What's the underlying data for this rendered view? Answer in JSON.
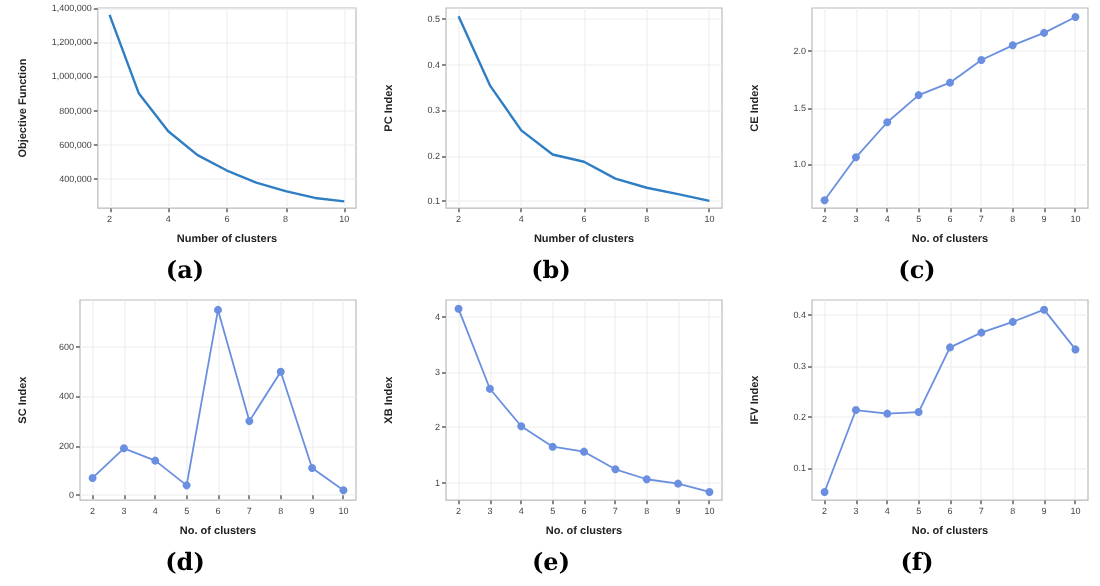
{
  "chart_data": [
    {
      "type": "line",
      "xlabel": "Number of clusters",
      "ylabel": "Objective Function",
      "annotations": [
        "(a)"
      ],
      "x": [
        2,
        3,
        4,
        5,
        6,
        7,
        8,
        9,
        10
      ],
      "series": [
        {
          "color": "#2f7ec4",
          "values": [
            1360000,
            900000,
            680000,
            540000,
            450000,
            380000,
            330000,
            290000,
            270000
          ]
        }
      ],
      "xlim": [
        1.6,
        10.4
      ],
      "xticks": [
        2,
        4,
        6,
        8,
        10
      ],
      "ylim": [
        230000,
        1400000
      ],
      "yticks": [
        {
          "value": 400000,
          "label": "400,000"
        },
        {
          "value": 600000,
          "label": "600,000"
        },
        {
          "value": 800000,
          "label": "800,000"
        },
        {
          "value": 1000000,
          "label": "1,000,000"
        },
        {
          "value": 1200000,
          "label": "1,200,000"
        },
        {
          "value": 1400000,
          "label": "1,400,000"
        }
      ],
      "grid": true,
      "marker": "none"
    },
    {
      "type": "line",
      "xlabel": "Number of clusters",
      "ylabel": "PC Index",
      "annotations": [
        "(b)"
      ],
      "x": [
        2,
        3,
        4,
        5,
        6,
        7,
        8,
        9,
        10
      ],
      "series": [
        {
          "color": "#2f7ec4",
          "values": [
            0.507,
            0.355,
            0.256,
            0.203,
            0.187,
            0.15,
            0.13,
            0.116,
            0.101
          ]
        }
      ],
      "xlim": [
        1.6,
        10.4
      ],
      "xticks": [
        2,
        4,
        6,
        8,
        10
      ],
      "ylim": [
        0.085,
        0.525
      ],
      "yticks": [
        0.1,
        0.2,
        0.3,
        0.4,
        0.5
      ],
      "grid": true,
      "marker": "none"
    },
    {
      "type": "line",
      "xlabel": "No. of clusters",
      "ylabel": "CE Index",
      "annotations": [
        "(c)"
      ],
      "x": [
        2,
        3,
        4,
        5,
        6,
        7,
        8,
        9,
        10
      ],
      "series": [
        {
          "color": "#6a8fe0",
          "values": [
            0.68,
            1.06,
            1.37,
            1.61,
            1.72,
            1.92,
            2.05,
            2.16,
            2.3
          ]
        }
      ],
      "xlim": [
        1.6,
        10.4
      ],
      "xticks": [
        2,
        3,
        4,
        5,
        6,
        7,
        8,
        9,
        10
      ],
      "ylim": [
        0.61,
        2.38
      ],
      "yticks": [
        {
          "value": 1,
          "label": "1.0"
        },
        1.5,
        {
          "value": 2,
          "label": "2.0"
        }
      ],
      "grid": true,
      "marker": "circle"
    },
    {
      "type": "line",
      "xlabel": "No. of clusters",
      "ylabel": "SC Index",
      "annotations": [
        "(d)"
      ],
      "x": [
        2,
        3,
        4,
        5,
        6,
        7,
        8,
        9,
        10
      ],
      "series": [
        {
          "color": "#6a8fe0",
          "values": [
            70,
            190,
            140,
            40,
            750,
            300,
            500,
            110,
            20
          ]
        }
      ],
      "xlim": [
        1.6,
        10.4
      ],
      "xticks": [
        2,
        3,
        4,
        5,
        6,
        7,
        8,
        9,
        10
      ],
      "ylim": [
        -20,
        790
      ],
      "yticks": [
        0,
        200,
        400,
        600
      ],
      "grid": true,
      "marker": "circle"
    },
    {
      "type": "line",
      "xlabel": "No. of clusters",
      "ylabel": "XB Index",
      "annotations": [
        "(e)"
      ],
      "x": [
        2,
        3,
        4,
        5,
        6,
        7,
        8,
        9,
        10
      ],
      "series": [
        {
          "color": "#6a8fe0",
          "values": [
            4.15,
            2.7,
            2.02,
            1.65,
            1.56,
            1.24,
            1.06,
            0.98,
            0.83
          ]
        }
      ],
      "xlim": [
        1.6,
        10.4
      ],
      "xticks": [
        2,
        3,
        4,
        5,
        6,
        7,
        8,
        9,
        10
      ],
      "ylim": [
        0.68,
        4.31
      ],
      "yticks": [
        1,
        2,
        3,
        4
      ],
      "grid": true,
      "marker": "circle"
    },
    {
      "type": "line",
      "xlabel": "No. of clusters",
      "ylabel": "IFV Index",
      "annotations": [
        "(f)"
      ],
      "x": [
        2,
        3,
        4,
        5,
        6,
        7,
        8,
        9,
        10
      ],
      "series": [
        {
          "color": "#6a8fe0",
          "values": [
            0.052,
            0.213,
            0.206,
            0.209,
            0.336,
            0.365,
            0.386,
            0.41,
            0.332
          ]
        }
      ],
      "xlim": [
        1.6,
        10.4
      ],
      "xticks": [
        2,
        3,
        4,
        5,
        6,
        7,
        8,
        9,
        10
      ],
      "ylim": [
        0.036,
        0.429
      ],
      "yticks": [
        0.1,
        0.2,
        0.3,
        0.4
      ],
      "grid": true,
      "marker": "circle"
    }
  ]
}
